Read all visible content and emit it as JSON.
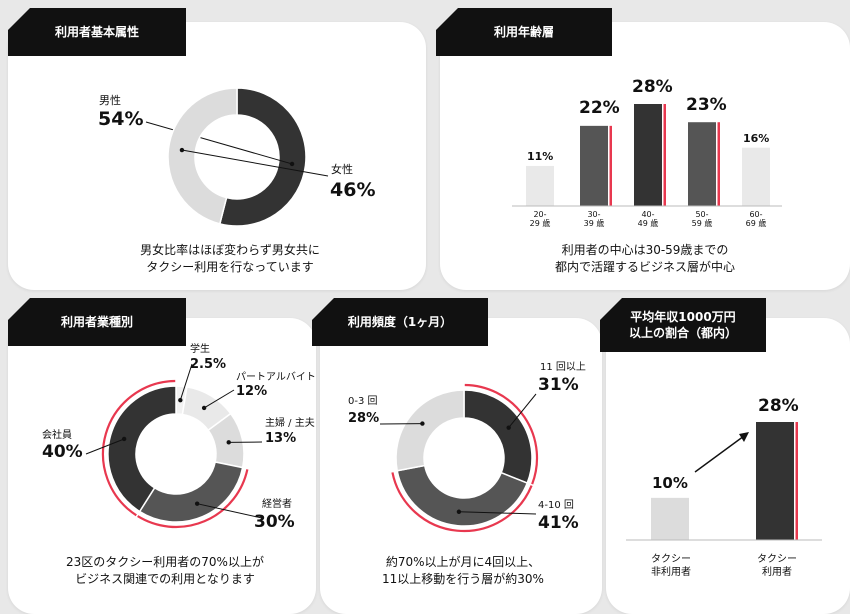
{
  "panels": {
    "gender": {
      "title": "利用者基本属性",
      "caption": "男女比率はほぼ変わらず男女共に\nタクシー利用を行なっています"
    },
    "age": {
      "title": "利用年齢層",
      "caption": "利用者の中心は30-59歳までの\n都内で活躍するビジネス層が中心"
    },
    "industry": {
      "title": "利用者業種別",
      "caption": "23区のタクシー利用者の70%以上が\nビジネス関連での利用となります"
    },
    "frequency": {
      "title": "利用頻度（1ヶ月）",
      "caption": "約70%以上が月に4回以上、\n11以上移動を行う層が約30%"
    },
    "income": {
      "title": "平均年収1000万円\n以上の割合（都内）"
    }
  },
  "colors": {
    "dark": "#333333",
    "mid": "#555555",
    "gray": "#bdbdbd",
    "light": "#dcdcdc",
    "lighter": "#e9e9e9",
    "accent": "#e8384f"
  },
  "chart_data": [
    {
      "type": "pie",
      "id": "gender",
      "slices": [
        {
          "label": "男性",
          "value": 54,
          "display": "54%"
        },
        {
          "label": "女性",
          "value": 46,
          "display": "46%"
        }
      ]
    },
    {
      "type": "bar",
      "id": "age",
      "categories": [
        "20-\n29 歳",
        "30-\n39 歳",
        "40-\n49 歳",
        "50-\n59 歳",
        "60-\n69 歳"
      ],
      "values": [
        11,
        22,
        28,
        23,
        16
      ],
      "labels": [
        "11%",
        "22%",
        "28%",
        "23%",
        "16%"
      ],
      "highlighted": [
        false,
        true,
        true,
        true,
        false
      ]
    },
    {
      "type": "pie",
      "id": "industry",
      "slices": [
        {
          "label": "学生",
          "value": 2.5,
          "display": "2.5%"
        },
        {
          "label": "パートアルバイト",
          "value": 12,
          "display": "12%"
        },
        {
          "label": "主婦 / 主夫",
          "value": 13,
          "display": "13%"
        },
        {
          "label": "経営者",
          "value": 30,
          "display": "30%"
        },
        {
          "label": "会社員",
          "value": 40,
          "display": "40%"
        }
      ],
      "highlighted": [
        "経営者",
        "会社員"
      ]
    },
    {
      "type": "pie",
      "id": "frequency",
      "slices": [
        {
          "label": "11 回以上",
          "value": 31,
          "display": "31%"
        },
        {
          "label": "4-10 回",
          "value": 41,
          "display": "41%"
        },
        {
          "label": "0-3 回",
          "value": 28,
          "display": "28%"
        }
      ],
      "highlighted": [
        "11 回以上",
        "4-10 回"
      ]
    },
    {
      "type": "bar",
      "id": "income",
      "categories": [
        "タクシー\n非利用者",
        "タクシー\n利用者"
      ],
      "values": [
        10,
        28
      ],
      "labels": [
        "10%",
        "28%"
      ],
      "highlighted": [
        false,
        true
      ]
    }
  ]
}
